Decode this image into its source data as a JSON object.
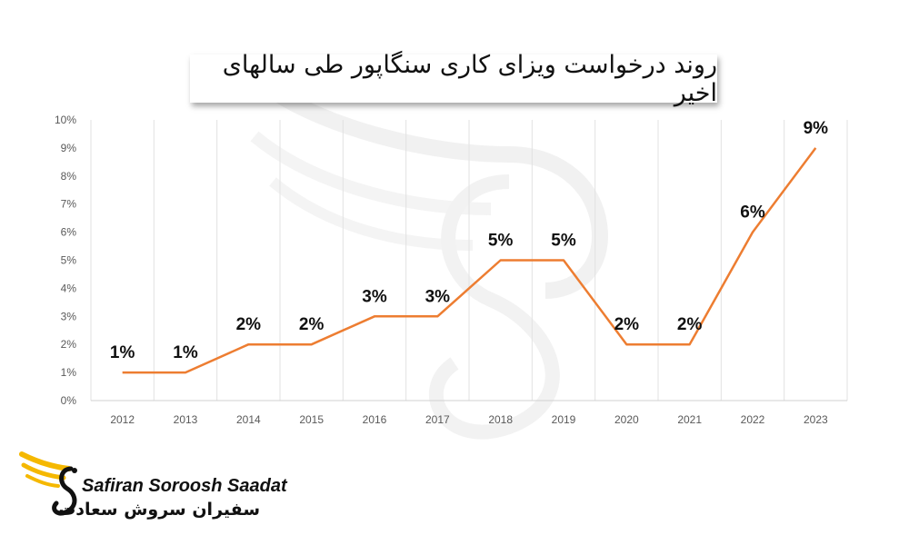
{
  "chart_data": {
    "type": "line",
    "title": "روند درخواست ویزای کاری سنگاپور طی سالهای اخیر",
    "categories": [
      "2012",
      "2013",
      "2014",
      "2015",
      "2016",
      "2017",
      "2018",
      "2019",
      "2020",
      "2021",
      "2022",
      "2023"
    ],
    "series": [
      {
        "values": [
          1,
          1,
          2,
          2,
          3,
          3,
          5,
          5,
          2,
          2,
          6,
          9
        ]
      }
    ],
    "data_labels": [
      "1%",
      "1%",
      "2%",
      "2%",
      "3%",
      "3%",
      "5%",
      "5%",
      "2%",
      "2%",
      "6%",
      "9%"
    ],
    "y_ticks": [
      "0%",
      "1%",
      "2%",
      "3%",
      "4%",
      "5%",
      "6%",
      "7%",
      "8%",
      "9%",
      "10%"
    ],
    "ylim": [
      0,
      10
    ],
    "grid": "vertical",
    "line_color": "#ED7D31"
  },
  "logo": {
    "name_en": "Safiran Soroosh Saadat",
    "name_fa": "سفیران سروش سعادت",
    "accent_color": "#F5B800"
  }
}
